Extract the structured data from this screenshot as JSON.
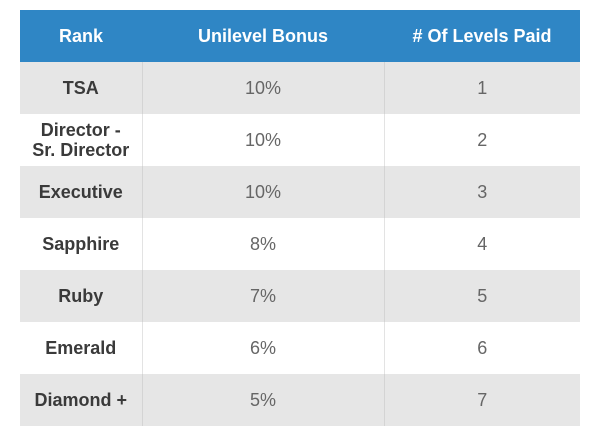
{
  "table": {
    "headers": [
      "Rank",
      "Unilevel Bonus",
      "# Of Levels Paid"
    ],
    "rows": [
      {
        "rank": "TSA",
        "bonus": "10%",
        "levels": "1"
      },
      {
        "rank": "Director - Sr. Director",
        "rank_line1": "Director -",
        "rank_line2": "Sr. Director",
        "bonus": "10%",
        "levels": "2"
      },
      {
        "rank": "Executive",
        "bonus": "10%",
        "levels": "3"
      },
      {
        "rank": "Sapphire",
        "bonus": "8%",
        "levels": "4"
      },
      {
        "rank": "Ruby",
        "bonus": "7%",
        "levels": "5"
      },
      {
        "rank": "Emerald",
        "bonus": "6%",
        "levels": "6"
      },
      {
        "rank": "Diamond +",
        "bonus": "5%",
        "levels": "7"
      }
    ]
  },
  "colors": {
    "header_bg": "#2f86c5",
    "header_text": "#ffffff",
    "row_shaded": "#e6e6e6",
    "row_plain": "#ffffff"
  }
}
